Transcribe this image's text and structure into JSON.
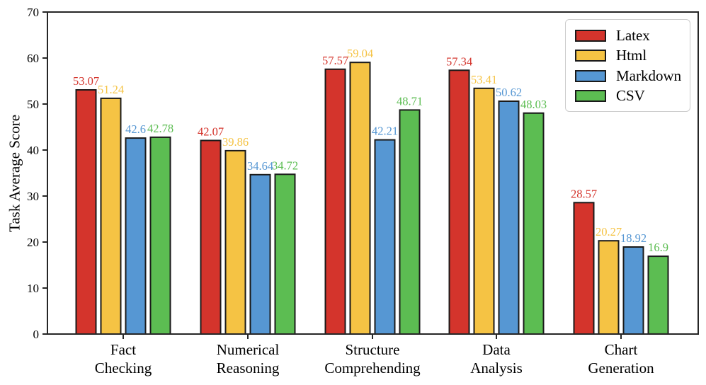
{
  "figure": {
    "background": "#ffffff",
    "axis_color": "#262626",
    "bar_edge_color": "#1a1a1a",
    "legend_border_color": "#cccccc"
  },
  "chart_data": {
    "type": "bar",
    "title": "",
    "xlabel": "",
    "ylabel": "Task Average Score",
    "ylim": [
      0,
      70
    ],
    "yticks": [
      0,
      10,
      20,
      30,
      40,
      50,
      60,
      70
    ],
    "grid": false,
    "legend_position": "upper right",
    "value_labels": true,
    "categories": [
      "Fact Checking",
      "Numerical Reasoning",
      "Structure Comprehending",
      "Data Analysis",
      "Chart Generation"
    ],
    "series": [
      {
        "name": "Latex",
        "color": "#d4342c",
        "values": [
          53.07,
          42.07,
          57.57,
          57.34,
          28.57
        ]
      },
      {
        "name": "Html",
        "color": "#f5c344",
        "values": [
          51.24,
          39.86,
          59.04,
          53.41,
          20.27
        ]
      },
      {
        "name": "Markdown",
        "color": "#5697d3",
        "values": [
          42.6,
          34.64,
          42.21,
          50.62,
          18.92
        ]
      },
      {
        "name": "CSV",
        "color": "#5cbd52",
        "values": [
          42.78,
          34.72,
          48.71,
          48.03,
          16.9
        ]
      }
    ]
  }
}
